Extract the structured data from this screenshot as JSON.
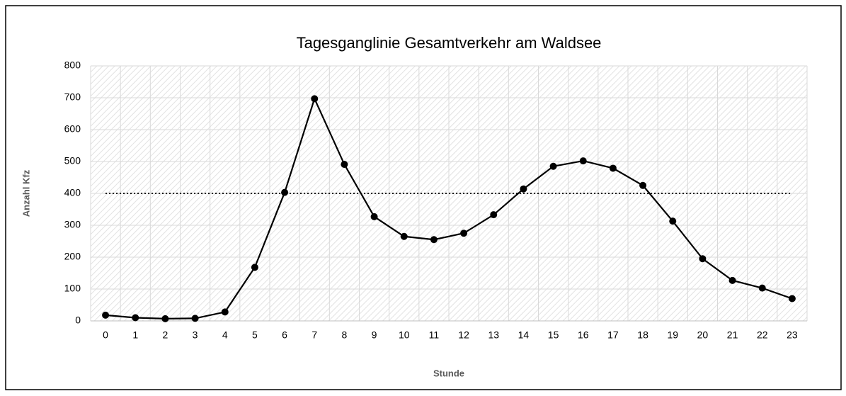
{
  "chart_data": {
    "type": "line",
    "title": "Tagesganglinie Gesamtverkehr am Waldsee",
    "x_label": "Stunde",
    "y_label": "Anzahl Kfz",
    "categories": [
      "0",
      "1",
      "2",
      "3",
      "4",
      "5",
      "6",
      "7",
      "8",
      "9",
      "10",
      "11",
      "12",
      "13",
      "14",
      "15",
      "16",
      "17",
      "18",
      "19",
      "20",
      "21",
      "22",
      "23"
    ],
    "series": [
      {
        "color": "#000000",
        "values": [
          18,
          10,
          7,
          8,
          28,
          168,
          403,
          697,
          491,
          327,
          265,
          255,
          275,
          333,
          414,
          485,
          502,
          479,
          425,
          313,
          195,
          127,
          103,
          70
        ]
      }
    ],
    "reference_line": {
      "value": 400,
      "style": "dotted",
      "color": "#000000"
    },
    "ylim": [
      0,
      800
    ],
    "yticks": [
      0,
      100,
      200,
      300,
      400,
      500,
      600,
      700,
      800
    ],
    "grid": true
  }
}
